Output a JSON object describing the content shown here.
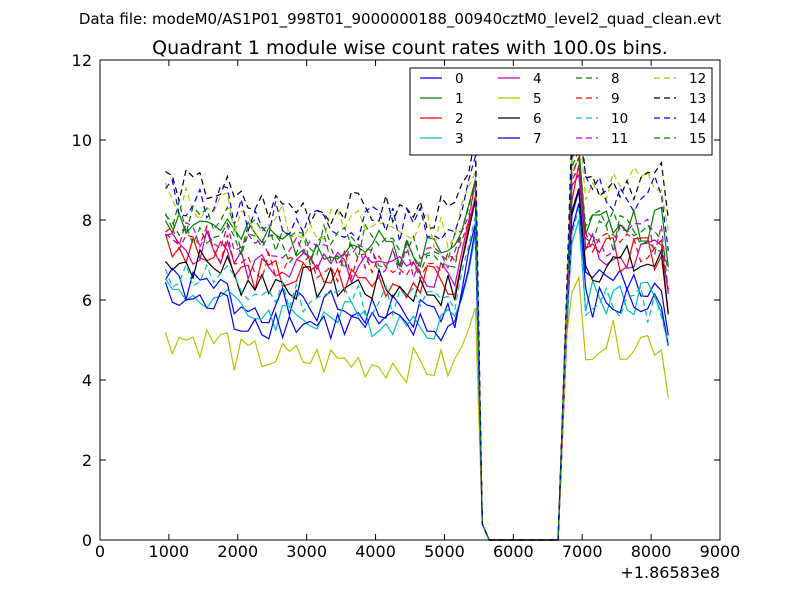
{
  "chart_data": {
    "type": "line",
    "suptitle": "Data file: modeM0/AS1P01_998T01_9000000188_00940cztM0_level2_quad_clean.evt",
    "title": "Quadrant 1 module wise count rates with 100.0s bins.",
    "xlabel": "",
    "ylabel": "",
    "xlim": [
      0,
      9000
    ],
    "ylim": [
      0,
      12
    ],
    "x_offset_label": "+1.86583e8",
    "xticks": [
      0,
      1000,
      2000,
      3000,
      4000,
      5000,
      6000,
      7000,
      8000,
      9000
    ],
    "yticks": [
      0,
      2,
      4,
      6,
      8,
      10,
      12
    ],
    "legend_position": "top-right",
    "legend_columns": 4,
    "segments": [
      {
        "x_start": 950,
        "x_end": 5450,
        "step": 100
      },
      {
        "x_start": 5550,
        "x_end": 6650,
        "step": 100
      },
      {
        "x_start": 6750,
        "x_end": 8250,
        "step": 100
      }
    ],
    "series": [
      {
        "name": "0",
        "color": "#0000ff",
        "dash": "solid",
        "level": 5.6,
        "post_level": 6.4,
        "peak": 8.0,
        "post_peak": 8.6,
        "seed": 1
      },
      {
        "name": "1",
        "color": "#008000",
        "dash": "solid",
        "level": 7.2,
        "post_level": 7.9,
        "peak": 9.2,
        "post_peak": 9.9,
        "seed": 2
      },
      {
        "name": "2",
        "color": "#ff0000",
        "dash": "solid",
        "level": 6.4,
        "post_level": 7.1,
        "peak": 8.5,
        "post_peak": 9.2,
        "seed": 3
      },
      {
        "name": "3",
        "color": "#00bfbf",
        "dash": "solid",
        "level": 5.4,
        "post_level": 6.1,
        "peak": 7.6,
        "post_peak": 8.0,
        "seed": 4
      },
      {
        "name": "4",
        "color": "#bf00bf",
        "dash": "solid",
        "level": 6.6,
        "post_level": 7.2,
        "peak": 8.6,
        "post_peak": 9.3,
        "seed": 5
      },
      {
        "name": "5",
        "color": "#bfbf00",
        "dash": "solid",
        "level": 4.3,
        "post_level": 5.0,
        "peak": 6.0,
        "post_peak": 6.5,
        "seed": 6
      },
      {
        "name": "6",
        "color": "#000000",
        "dash": "solid",
        "level": 6.2,
        "post_level": 6.9,
        "peak": 8.4,
        "post_peak": 8.9,
        "seed": 7
      },
      {
        "name": "7",
        "color": "#0000ff",
        "dash": "solid",
        "level": 5.2,
        "post_level": 5.9,
        "peak": 7.8,
        "post_peak": 8.3,
        "seed": 8
      },
      {
        "name": "8",
        "color": "#008000",
        "dash": "dashed",
        "level": 7.0,
        "post_level": 7.7,
        "peak": 9.0,
        "post_peak": 9.6,
        "seed": 9
      },
      {
        "name": "9",
        "color": "#ff0000",
        "dash": "dashed",
        "level": 6.7,
        "post_level": 7.4,
        "peak": 8.8,
        "post_peak": 9.4,
        "seed": 10
      },
      {
        "name": "10",
        "color": "#00bfbf",
        "dash": "dashed",
        "level": 5.9,
        "post_level": 5.9,
        "peak": 8.0,
        "post_peak": 8.3,
        "seed": 11
      },
      {
        "name": "11",
        "color": "#bf00bf",
        "dash": "dashed",
        "level": 6.9,
        "post_level": 7.6,
        "peak": 8.9,
        "post_peak": 9.5,
        "seed": 12
      },
      {
        "name": "12",
        "color": "#bfbf00",
        "dash": "dashed",
        "level": 7.7,
        "post_level": 8.9,
        "peak": 9.3,
        "post_peak": 10.4,
        "seed": 13
      },
      {
        "name": "13",
        "color": "#000000",
        "dash": "dashed",
        "level": 8.1,
        "post_level": 9.0,
        "peak": 9.9,
        "post_peak": 11.0,
        "seed": 14
      },
      {
        "name": "14",
        "color": "#0000ff",
        "dash": "dashed",
        "level": 7.8,
        "post_level": 8.6,
        "peak": 9.5,
        "post_peak": 10.3,
        "seed": 15
      },
      {
        "name": "15",
        "color": "#008000",
        "dash": "dashed",
        "level": 7.3,
        "post_level": 7.9,
        "peak": 9.0,
        "post_peak": 9.8,
        "seed": 16
      }
    ]
  }
}
